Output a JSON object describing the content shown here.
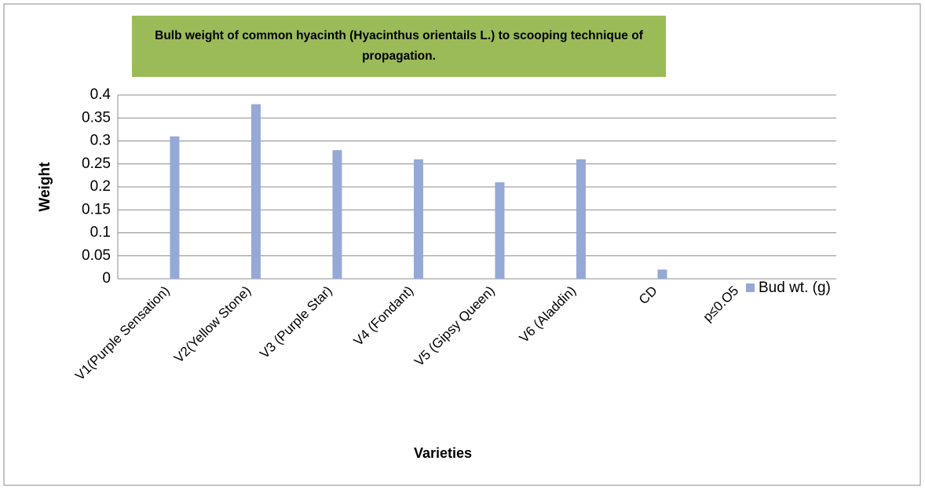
{
  "chart_data": {
    "type": "bar",
    "title": "Bulb weight  of common hyacinth (Hyacinthus orientails L.) to scooping technique of propagation.",
    "x_label": "Varieties",
    "y_label": "Weight",
    "categories": [
      "V1(Purple Sensation)",
      "V2(Yellow Stone)",
      "V3 (Purple Star)",
      "V4 (Fondant)",
      "V5 (Gipsy Queen)",
      "V6 (Aladdin)",
      "CD",
      "p≤0.O5"
    ],
    "series": [
      {
        "name": "Bud wt. (g)",
        "color": "#95a9d6",
        "values": [
          0.31,
          0.38,
          0.28,
          0.26,
          0.21,
          0.26,
          0.02,
          null
        ]
      }
    ],
    "ylim": [
      0,
      0.4
    ],
    "yticks": [
      0,
      0.05,
      0.1,
      0.15,
      0.2,
      0.25,
      0.3,
      0.35,
      0.4
    ],
    "grid": true,
    "legend": "right",
    "title_background": "#9bbb59"
  }
}
